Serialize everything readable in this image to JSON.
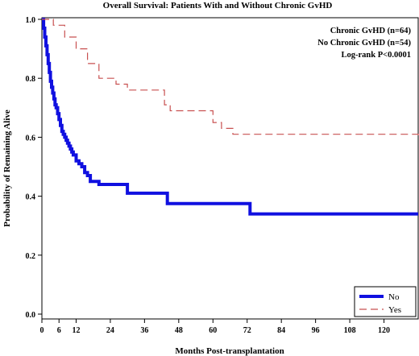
{
  "chart_data": {
    "type": "line",
    "title": "Overall Survival: Patients With and Without Chronic GvHD",
    "xlabel": "Months Post-transplantation",
    "ylabel": "Probability of Remaining Alive",
    "xlim": [
      0,
      132
    ],
    "ylim": [
      0,
      1.0
    ],
    "x_ticks": [
      0,
      6,
      12,
      24,
      36,
      48,
      60,
      72,
      84,
      96,
      108,
      120
    ],
    "y_ticks": [
      0.0,
      0.2,
      0.4,
      0.6,
      0.8,
      1.0
    ],
    "x_tick_labels": [
      "0",
      "6",
      "12",
      "24",
      "36",
      "48",
      "60",
      "72",
      "84",
      "96",
      "108",
      "120"
    ],
    "y_tick_labels": [
      "0.0",
      "0.2",
      "0.4",
      "0.6",
      "0.8",
      "1.0"
    ],
    "grid": false,
    "legend_position": "bottom-right",
    "annotations": [
      "Chronic GvHD (n=64)",
      "No Chronic GvHD (n=54)",
      "Log-rank P<0.0001"
    ],
    "series": [
      {
        "name": "No",
        "color": "#1010e0",
        "style": "solid",
        "x": [
          0,
          0.6,
          1.0,
          1.4,
          1.8,
          2.2,
          2.6,
          3.0,
          3.4,
          3.8,
          4.2,
          4.6,
          5.0,
          5.5,
          6.0,
          6.5,
          7.0,
          7.5,
          8.0,
          8.5,
          9.0,
          9.5,
          10.0,
          10.5,
          11.0,
          12.0,
          13.0,
          14.0,
          15.0,
          16.0,
          17.0,
          18.0,
          20.0,
          30.0,
          44.0,
          73.0,
          132.0
        ],
        "y": [
          1.0,
          0.97,
          0.94,
          0.91,
          0.88,
          0.85,
          0.82,
          0.79,
          0.77,
          0.75,
          0.73,
          0.71,
          0.7,
          0.68,
          0.66,
          0.64,
          0.62,
          0.61,
          0.6,
          0.59,
          0.58,
          0.57,
          0.56,
          0.55,
          0.54,
          0.52,
          0.51,
          0.5,
          0.48,
          0.47,
          0.45,
          0.45,
          0.44,
          0.41,
          0.375,
          0.34,
          0.34
        ]
      },
      {
        "name": "Yes",
        "color": "#c85050",
        "style": "dashed",
        "x": [
          0,
          4,
          8,
          12,
          16,
          20,
          26,
          30,
          43,
          45,
          60,
          63,
          67,
          132
        ],
        "y": [
          1.0,
          0.98,
          0.94,
          0.9,
          0.85,
          0.8,
          0.78,
          0.76,
          0.71,
          0.69,
          0.65,
          0.63,
          0.61,
          0.605
        ]
      }
    ]
  }
}
